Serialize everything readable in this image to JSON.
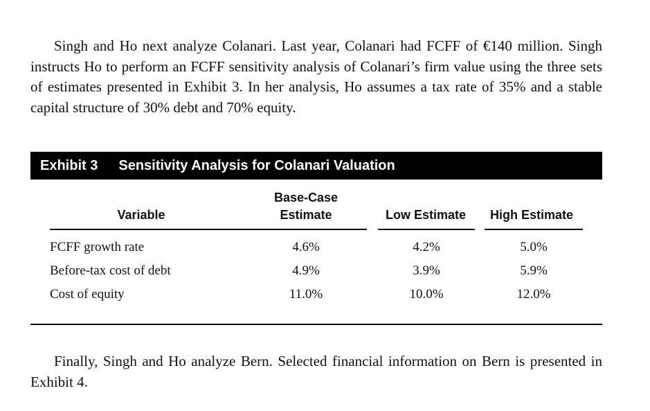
{
  "intro_paragraph": "Singh and Ho next analyze Colanari. Last year, Colanari had FCFF of €140 million. Singh instructs Ho to perform an FCFF sensitivity analysis of Colanari’s firm value using the three sets of estimates presented in Exhibit 3. In her analysis, Ho assumes a tax rate of 35% and a stable capital structure of 30% debt and 70% equity.",
  "exhibit": {
    "number": "Exhibit 3",
    "title": "Sensitivity Analysis for Colanari Valuation",
    "columns": {
      "variable": "Variable",
      "base_line1": "Base-Case",
      "base_line2": "Estimate",
      "low": "Low Estimate",
      "high": "High Estimate"
    },
    "rows": [
      {
        "variable": "FCFF growth rate",
        "base": "4.6%",
        "low": "4.2%",
        "high": "5.0%"
      },
      {
        "variable": "Before-tax cost of debt",
        "base": "4.9%",
        "low": "3.9%",
        "high": "5.9%"
      },
      {
        "variable": "Cost of equity",
        "base": "11.0%",
        "low": "10.0%",
        "high": "12.0%"
      }
    ]
  },
  "closing_paragraph": "Finally, Singh and Ho analyze Bern. Selected financial information on Bern is presented in Exhibit 4."
}
